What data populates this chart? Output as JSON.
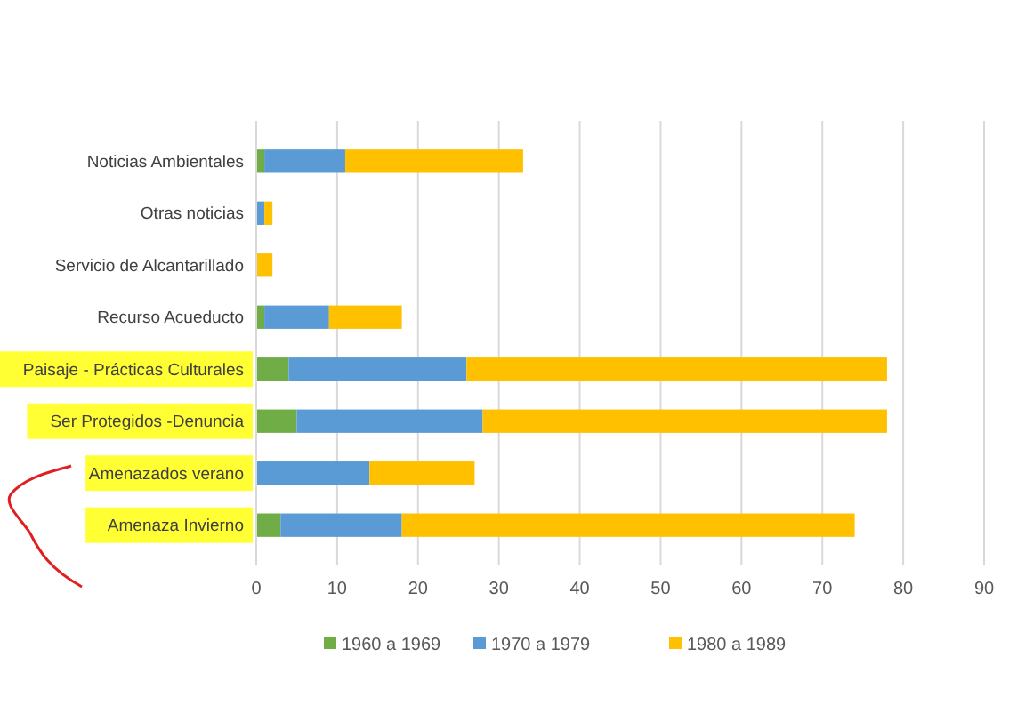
{
  "chart_data": {
    "type": "bar",
    "orientation": "horizontal",
    "stacked": true,
    "categories": [
      "Noticias Ambientales",
      "Otras noticias",
      "Servicio de Alcantarillado",
      "Recurso Acueducto",
      "Paisaje - Prácticas Culturales",
      "Ser Protegidos -Denuncia",
      "Amenazados verano",
      "Amenaza  Invierno"
    ],
    "series": [
      {
        "name": "1960 a 1969",
        "color": "#70ad47",
        "values": [
          1,
          0,
          0,
          1,
          4,
          5,
          0,
          3
        ]
      },
      {
        "name": "1970  a 1979",
        "color": "#5b9bd5",
        "values": [
          10,
          1,
          0,
          8,
          22,
          23,
          14,
          15
        ]
      },
      {
        "name": "1980 a 1989",
        "color": "#ffc000",
        "values": [
          22,
          1,
          2,
          9,
          52,
          50,
          13,
          56
        ]
      }
    ],
    "xlim": [
      0,
      90
    ],
    "xticks": [
      0,
      10,
      20,
      30,
      40,
      50,
      60,
      70,
      80,
      90
    ],
    "grid": "x",
    "legend": "bottom"
  }
}
